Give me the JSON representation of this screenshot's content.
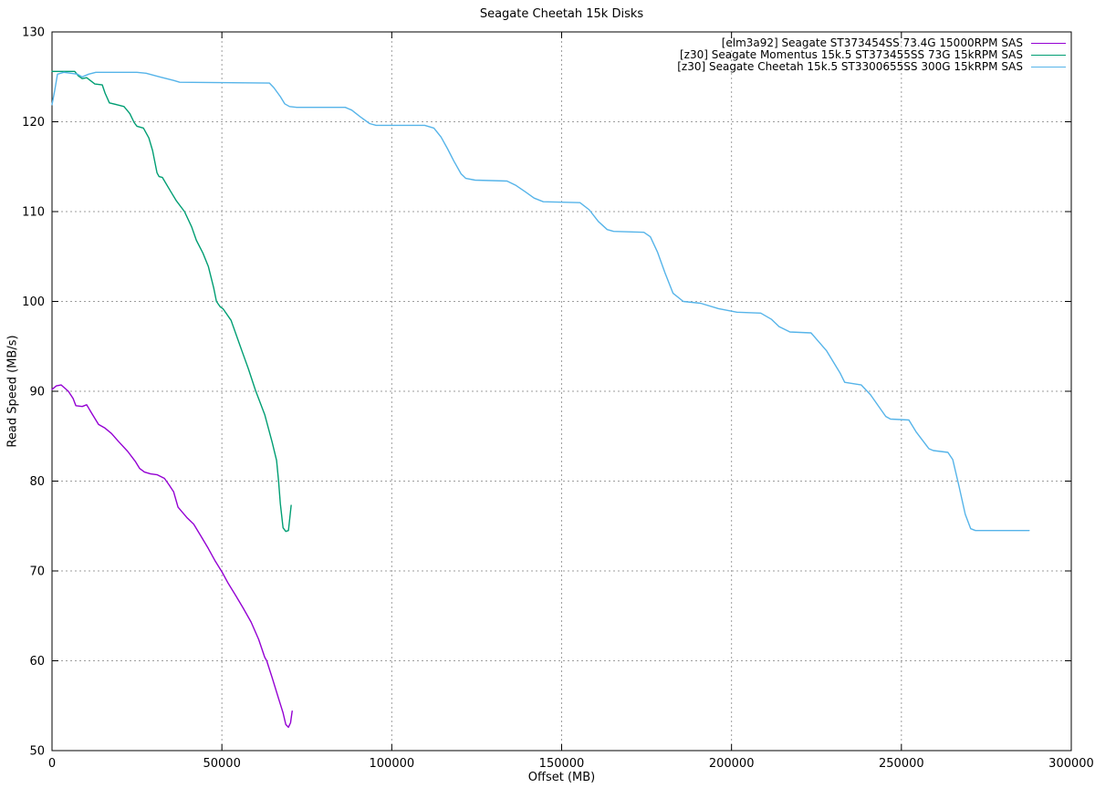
{
  "page": {
    "background": "#ffffff"
  },
  "chart_data": {
    "type": "line",
    "title": "Seagate Cheetah 15k Disks",
    "xlabel": "Offset (MB)",
    "ylabel": "Read Speed (MB/s)",
    "xlim": [
      0,
      300000
    ],
    "ylim": [
      50,
      130
    ],
    "x_ticks": [
      0,
      50000,
      100000,
      150000,
      200000,
      250000,
      300000
    ],
    "y_ticks": [
      50,
      60,
      70,
      80,
      90,
      100,
      110,
      120,
      130
    ],
    "grid": true,
    "legend_position": "top-right-inside",
    "axis_color": "#000000",
    "grid_color": "#9e9e9e",
    "series": [
      {
        "name": "[elm3a92] Seagate ST373454SS 73.4G 15000RPM SAS",
        "color": "#9400d3",
        "points": [
          [
            0,
            90.2
          ],
          [
            1300,
            90.6
          ],
          [
            2700,
            90.7
          ],
          [
            4800,
            90.0
          ],
          [
            6200,
            89.2
          ],
          [
            7000,
            88.4
          ],
          [
            8900,
            88.3
          ],
          [
            10200,
            88.5
          ],
          [
            11600,
            87.6
          ],
          [
            13700,
            86.3
          ],
          [
            15600,
            85.9
          ],
          [
            17500,
            85.3
          ],
          [
            19600,
            84.4
          ],
          [
            22300,
            83.3
          ],
          [
            24500,
            82.2
          ],
          [
            25800,
            81.4
          ],
          [
            27200,
            81.0
          ],
          [
            29000,
            80.8
          ],
          [
            31000,
            80.7
          ],
          [
            33100,
            80.3
          ],
          [
            34400,
            79.6
          ],
          [
            35800,
            78.8
          ],
          [
            37100,
            77.1
          ],
          [
            39800,
            75.9
          ],
          [
            41700,
            75.2
          ],
          [
            43800,
            73.9
          ],
          [
            46000,
            72.5
          ],
          [
            47900,
            71.2
          ],
          [
            50000,
            69.9
          ],
          [
            51900,
            68.6
          ],
          [
            54000,
            67.3
          ],
          [
            56200,
            65.9
          ],
          [
            58600,
            64.3
          ],
          [
            60800,
            62.4
          ],
          [
            62600,
            60.4
          ],
          [
            63200,
            60.0
          ],
          [
            64800,
            58.1
          ],
          [
            66700,
            55.8
          ],
          [
            68000,
            54.2
          ],
          [
            68800,
            52.9
          ],
          [
            69600,
            52.6
          ],
          [
            70200,
            53.1
          ],
          [
            70700,
            54.4
          ]
        ]
      },
      {
        "name": "[z30] Seagate Momentus 15k.5 ST373455SS 73G 15kRPM SAS",
        "color": "#009e73",
        "points": [
          [
            0,
            125.6
          ],
          [
            6700,
            125.6
          ],
          [
            7800,
            125.1
          ],
          [
            8900,
            124.8
          ],
          [
            10200,
            124.9
          ],
          [
            11600,
            124.5
          ],
          [
            12600,
            124.2
          ],
          [
            14800,
            124.1
          ],
          [
            15600,
            123.2
          ],
          [
            16900,
            122.1
          ],
          [
            19100,
            121.9
          ],
          [
            21200,
            121.7
          ],
          [
            22900,
            120.9
          ],
          [
            24200,
            119.9
          ],
          [
            25000,
            119.5
          ],
          [
            26900,
            119.3
          ],
          [
            28500,
            118.2
          ],
          [
            29600,
            116.8
          ],
          [
            30900,
            114.3
          ],
          [
            31500,
            113.9
          ],
          [
            32500,
            113.8
          ],
          [
            35000,
            112.2
          ],
          [
            36600,
            111.2
          ],
          [
            39000,
            110.0
          ],
          [
            41100,
            108.3
          ],
          [
            42500,
            106.8
          ],
          [
            44400,
            105.4
          ],
          [
            46000,
            103.9
          ],
          [
            47600,
            101.5
          ],
          [
            48400,
            100.0
          ],
          [
            49500,
            99.4
          ],
          [
            50300,
            99.2
          ],
          [
            52700,
            97.9
          ],
          [
            55900,
            94.5
          ],
          [
            57800,
            92.5
          ],
          [
            59900,
            90.1
          ],
          [
            62600,
            87.4
          ],
          [
            64800,
            84.3
          ],
          [
            66100,
            82.3
          ],
          [
            66700,
            80.0
          ],
          [
            67200,
            77.5
          ],
          [
            68000,
            74.8
          ],
          [
            68800,
            74.4
          ],
          [
            69600,
            74.5
          ],
          [
            70400,
            77.3
          ]
        ]
      },
      {
        "name": "[z30] Seagate Cheetah 15k.5 ST3300655SS 300G 15kRPM SAS",
        "color": "#56b4e9",
        "points": [
          [
            0,
            121.9
          ],
          [
            800,
            123.5
          ],
          [
            1600,
            125.3
          ],
          [
            3500,
            125.5
          ],
          [
            7500,
            125.3
          ],
          [
            8900,
            125.0
          ],
          [
            10800,
            125.3
          ],
          [
            12900,
            125.5
          ],
          [
            25000,
            125.5
          ],
          [
            27700,
            125.4
          ],
          [
            31700,
            125.0
          ],
          [
            35800,
            124.6
          ],
          [
            37600,
            124.4
          ],
          [
            64000,
            124.3
          ],
          [
            65300,
            123.8
          ],
          [
            67200,
            122.8
          ],
          [
            68500,
            122.0
          ],
          [
            69900,
            121.7
          ],
          [
            72000,
            121.6
          ],
          [
            86300,
            121.6
          ],
          [
            88200,
            121.3
          ],
          [
            90900,
            120.5
          ],
          [
            93500,
            119.8
          ],
          [
            95400,
            119.6
          ],
          [
            109700,
            119.6
          ],
          [
            112400,
            119.3
          ],
          [
            114500,
            118.3
          ],
          [
            116400,
            117.0
          ],
          [
            118300,
            115.6
          ],
          [
            120400,
            114.2
          ],
          [
            121800,
            113.7
          ],
          [
            124500,
            113.5
          ],
          [
            133900,
            113.4
          ],
          [
            136600,
            112.9
          ],
          [
            139300,
            112.2
          ],
          [
            141900,
            111.5
          ],
          [
            144600,
            111.1
          ],
          [
            155400,
            111.0
          ],
          [
            158100,
            110.2
          ],
          [
            160800,
            108.9
          ],
          [
            163400,
            108.0
          ],
          [
            165300,
            107.8
          ],
          [
            174200,
            107.7
          ],
          [
            176100,
            107.2
          ],
          [
            178200,
            105.5
          ],
          [
            180400,
            103.2
          ],
          [
            182800,
            100.9
          ],
          [
            185800,
            100.0
          ],
          [
            190900,
            99.8
          ],
          [
            196200,
            99.2
          ],
          [
            201600,
            98.8
          ],
          [
            208600,
            98.7
          ],
          [
            211800,
            98.0
          ],
          [
            214000,
            97.2
          ],
          [
            217200,
            96.6
          ],
          [
            223400,
            96.5
          ],
          [
            228000,
            94.5
          ],
          [
            232000,
            92.0
          ],
          [
            233300,
            91.0
          ],
          [
            238200,
            90.7
          ],
          [
            240900,
            89.6
          ],
          [
            245400,
            87.2
          ],
          [
            246800,
            86.9
          ],
          [
            252200,
            86.8
          ],
          [
            254300,
            85.5
          ],
          [
            258100,
            83.6
          ],
          [
            259400,
            83.4
          ],
          [
            263700,
            83.2
          ],
          [
            265100,
            82.4
          ],
          [
            266900,
            79.5
          ],
          [
            268800,
            76.3
          ],
          [
            270400,
            74.7
          ],
          [
            271800,
            74.5
          ],
          [
            287600,
            74.5
          ]
        ]
      }
    ]
  }
}
